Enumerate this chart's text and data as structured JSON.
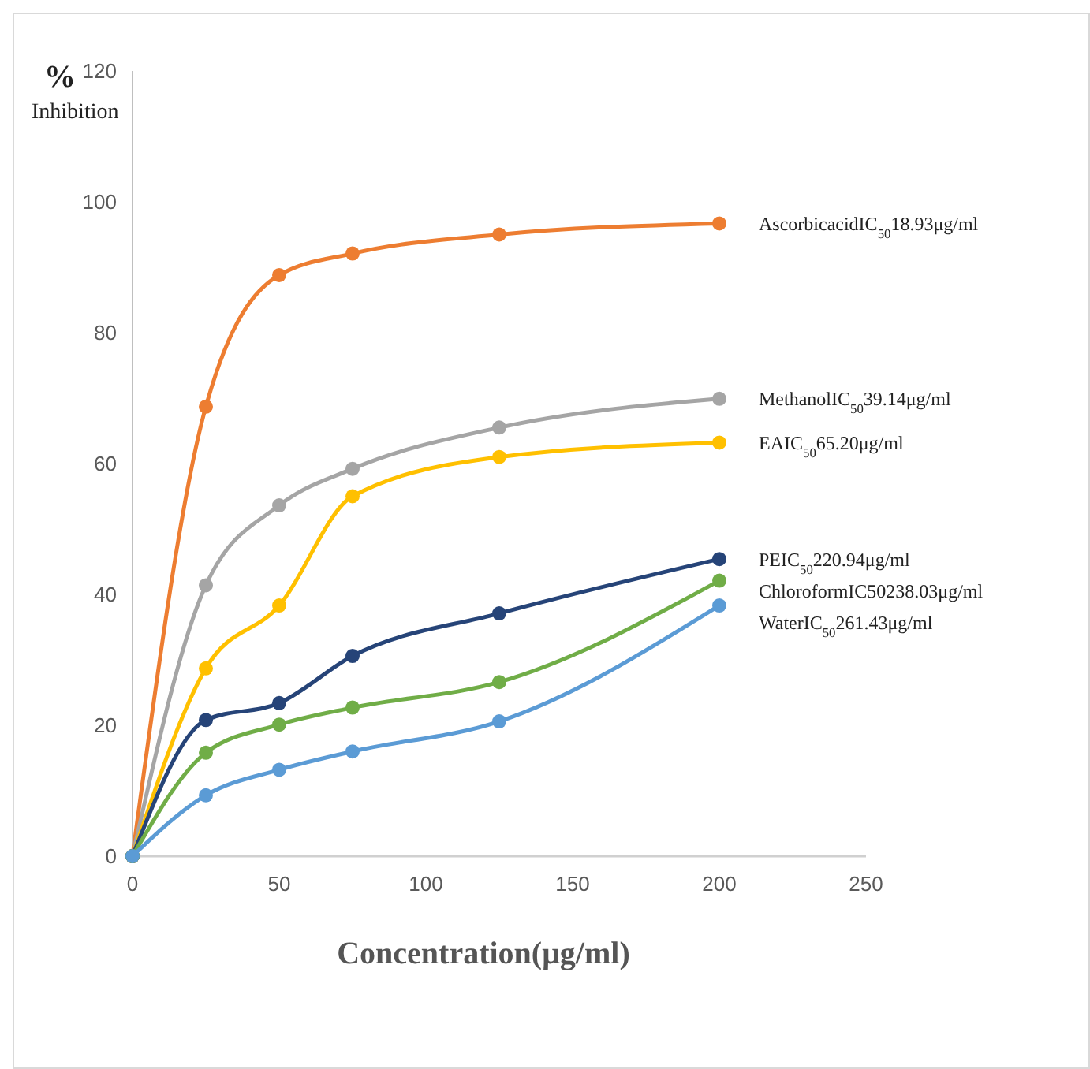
{
  "chart_data": {
    "type": "line",
    "xlabel": "Concentration(μg/ml)",
    "ylabel": "% Inhibition",
    "x": [
      0,
      25,
      50,
      75,
      125,
      200
    ],
    "xlim": [
      0,
      250
    ],
    "xticks": [
      0,
      50,
      100,
      150,
      200,
      250
    ],
    "ylim": [
      0,
      120
    ],
    "yticks": [
      0,
      20,
      40,
      60,
      80,
      100,
      120
    ],
    "grid": false,
    "legend": false,
    "marker": "circle",
    "line_style": "solid",
    "series": [
      {
        "name": "AscorbicacidIC$_{50}$18.93μg/ml",
        "color": "#ed7d31",
        "values": [
          0,
          68.7,
          88.8,
          92.1,
          95,
          96.7
        ]
      },
      {
        "name": "MethanolIC$_{50}$39.14μg/ml",
        "color": "#a5a5a5",
        "values": [
          0,
          41.4,
          53.6,
          59.2,
          65.5,
          69.9
        ]
      },
      {
        "name": "EAIC$_{50}$65.20μg/ml",
        "color": "#ffc000",
        "values": [
          0,
          28.7,
          38.3,
          55,
          61,
          63.2
        ]
      },
      {
        "name": "PEIC$_{50}$220.94μg/ml",
        "color": "#264478",
        "values": [
          0,
          20.8,
          23.4,
          30.6,
          37.1,
          45.4
        ]
      },
      {
        "name": "ChloroformIC50238.03μg/ml",
        "color": "#70ad47",
        "values": [
          0,
          15.8,
          20.1,
          22.7,
          26.6,
          42.1
        ]
      },
      {
        "name": "WaterIC$_{50}$261.43μg/ml",
        "color": "#5b9bd5",
        "values": [
          0,
          9.3,
          13.2,
          16,
          20.6,
          38.3
        ]
      }
    ]
  }
}
